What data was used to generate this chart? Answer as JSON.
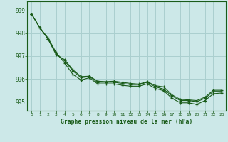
{
  "title": "Graphe pression niveau de la mer (hPa)",
  "background_color": "#cce8e8",
  "grid_color": "#aacfcf",
  "line_color": "#1a5c1a",
  "marker": "+",
  "xlim": [
    -0.5,
    23.5
  ],
  "ylim": [
    994.6,
    999.4
  ],
  "yticks": [
    995,
    996,
    997,
    998,
    999
  ],
  "xticks": [
    0,
    1,
    2,
    3,
    4,
    5,
    6,
    7,
    8,
    9,
    10,
    11,
    12,
    13,
    14,
    15,
    16,
    17,
    18,
    19,
    20,
    21,
    22,
    23
  ],
  "series1": [
    998.85,
    998.25,
    997.75,
    997.1,
    996.8,
    996.35,
    996.05,
    996.1,
    995.85,
    995.85,
    995.85,
    995.8,
    995.75,
    995.75,
    995.85,
    995.65,
    995.55,
    995.25,
    995.05,
    995.05,
    995.0,
    995.15,
    995.45,
    995.45
  ],
  "series2": [
    998.85,
    998.25,
    997.75,
    997.05,
    996.85,
    996.4,
    996.1,
    996.12,
    995.9,
    995.88,
    995.9,
    995.85,
    995.8,
    995.77,
    995.88,
    995.7,
    995.65,
    995.3,
    995.1,
    995.08,
    995.05,
    995.2,
    995.5,
    995.5
  ],
  "series3": [
    998.85,
    998.25,
    997.8,
    997.15,
    996.7,
    996.2,
    995.95,
    996.05,
    995.78,
    995.78,
    995.78,
    995.72,
    995.68,
    995.68,
    995.78,
    995.58,
    995.48,
    995.15,
    994.95,
    994.95,
    994.88,
    995.05,
    995.35,
    995.38
  ]
}
